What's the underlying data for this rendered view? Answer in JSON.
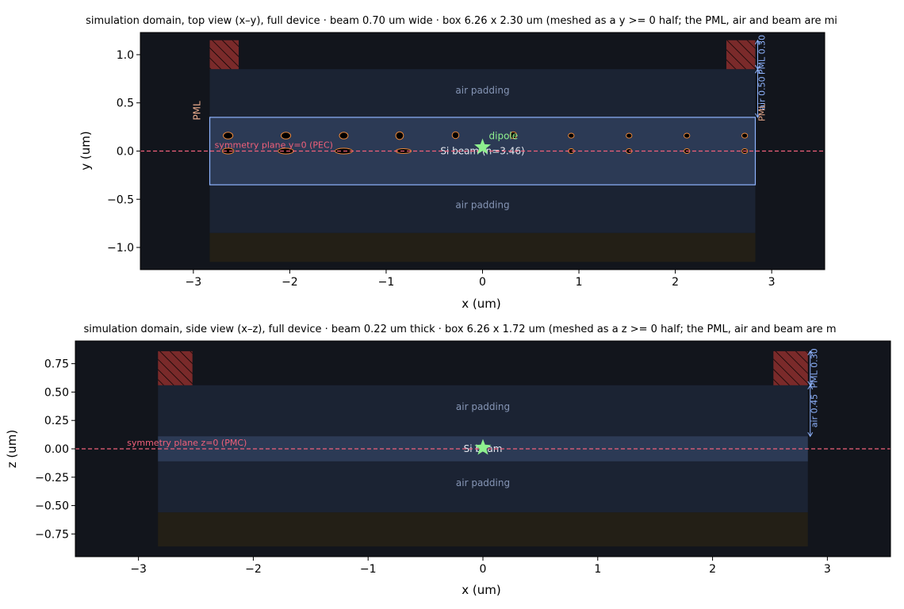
{
  "chart_data": [
    {
      "type": "diagram",
      "title": "simulation domain, top view (x–y), full device · beam 0.70 um wide · box 6.26 x 2.30 um (meshed as a y >= 0 half; the PML, air and beam are mi",
      "xlabel": "x (um)",
      "ylabel": "y (um)",
      "xlim": [
        -3.55,
        3.55
      ],
      "ylim": [
        -1.23,
        1.23
      ],
      "xticks": [
        -3,
        -2,
        -1,
        0,
        1,
        2,
        3
      ],
      "xtick_labels": [
        "−3",
        "−2",
        "−1",
        "0",
        "1",
        "2",
        "3"
      ],
      "yticks": [
        1.0,
        0.5,
        0.0,
        -0.5,
        -1.0
      ],
      "ytick_labels": [
        "1.0",
        "0.5",
        "0.0",
        "−0.5",
        "−1.0"
      ],
      "domain": {
        "xmin": -2.83,
        "xmax": 2.83,
        "ymin": -1.15,
        "ymax": 1.15
      },
      "pml_thickness": 0.3,
      "pml_half": "bottom",
      "beam": {
        "xmin": -2.83,
        "xmax": 2.83,
        "ymin": -0.35,
        "ymax": 0.35,
        "label": "Si beam (n=3.46)",
        "outlined": true
      },
      "air_padding_labels": [
        {
          "x": 0,
          "y": 0.63,
          "text": "air padding"
        },
        {
          "x": 0,
          "y": -0.56,
          "text": "air padding"
        }
      ],
      "symmetry": {
        "y": 0.0,
        "label": "symmetry plane y=0 (PEC)",
        "label_x": -2.78
      },
      "dipole": {
        "x": 0.0,
        "y": 0.04,
        "label": "dipole"
      },
      "side_label": {
        "x": -2.93,
        "y": 0.42,
        "text": "PML"
      },
      "dims": {
        "x": 2.83,
        "air": [
          0.35,
          0.85
        ],
        "air_label": "air 0.50",
        "pml": [
          0.85,
          1.15
        ],
        "pml_label": "PML 0.30",
        "extra_label": "PML"
      },
      "corner_pml": [
        [
          -2.83,
          0.85,
          -2.53,
          1.15
        ],
        [
          2.53,
          0.85,
          2.83,
          1.15
        ]
      ],
      "holes": [
        {
          "x": -2.64,
          "y": 0.16,
          "rx": 0.05,
          "ry": 0.035
        },
        {
          "x": -2.04,
          "y": 0.16,
          "rx": 0.05,
          "ry": 0.035
        },
        {
          "x": -1.44,
          "y": 0.16,
          "rx": 0.045,
          "ry": 0.035
        },
        {
          "x": -0.86,
          "y": 0.16,
          "rx": 0.04,
          "ry": 0.04
        },
        {
          "x": -0.28,
          "y": 0.165,
          "rx": 0.035,
          "ry": 0.035
        },
        {
          "x": 0.32,
          "y": 0.165,
          "rx": 0.035,
          "ry": 0.035
        },
        {
          "x": 0.92,
          "y": 0.16,
          "rx": 0.03,
          "ry": 0.025
        },
        {
          "x": 1.52,
          "y": 0.16,
          "rx": 0.03,
          "ry": 0.025
        },
        {
          "x": 2.12,
          "y": 0.16,
          "rx": 0.03,
          "ry": 0.025
        },
        {
          "x": 2.72,
          "y": 0.16,
          "rx": 0.03,
          "ry": 0.025
        },
        {
          "x": -2.64,
          "y": 0.0,
          "rx": 0.06,
          "ry": 0.03
        },
        {
          "x": -2.04,
          "y": 0.0,
          "rx": 0.08,
          "ry": 0.03
        },
        {
          "x": -1.44,
          "y": 0.0,
          "rx": 0.09,
          "ry": 0.03
        },
        {
          "x": -0.82,
          "y": 0.0,
          "rx": 0.08,
          "ry": 0.025
        },
        {
          "x": 0.92,
          "y": 0.0,
          "rx": 0.03,
          "ry": 0.025
        },
        {
          "x": 1.52,
          "y": 0.0,
          "rx": 0.03,
          "ry": 0.025
        },
        {
          "x": 2.12,
          "y": 0.0,
          "rx": 0.03,
          "ry": 0.025
        },
        {
          "x": 2.72,
          "y": 0.0,
          "rx": 0.03,
          "ry": 0.025
        }
      ]
    },
    {
      "type": "diagram",
      "title": "simulation domain, side view (x–z), full device · beam 0.22 um thick · box 6.26 x 1.72 um (meshed as a z >= 0 half; the PML, air and beam are m",
      "xlabel": "x (um)",
      "ylabel": "z (um)",
      "xlim": [
        -3.55,
        3.55
      ],
      "ylim": [
        -0.95,
        0.95
      ],
      "xticks": [
        -3,
        -2,
        -1,
        0,
        1,
        2,
        3
      ],
      "xtick_labels": [
        "−3",
        "−2",
        "−1",
        "0",
        "1",
        "2",
        "3"
      ],
      "yticks": [
        0.75,
        0.5,
        0.25,
        0.0,
        -0.25,
        -0.5,
        -0.75
      ],
      "ytick_labels": [
        "0.75",
        "0.50",
        "0.25",
        "0.00",
        "−0.25",
        "−0.50",
        "−0.75"
      ],
      "domain": {
        "xmin": -2.83,
        "xmax": 2.83,
        "ymin": -0.86,
        "ymax": 0.86
      },
      "pml_thickness": 0.3,
      "pml_half": "bottom",
      "beam": {
        "xmin": -2.83,
        "xmax": 2.83,
        "ymin": -0.11,
        "ymax": 0.11,
        "label": "Si beam",
        "outlined": false
      },
      "air_padding_labels": [
        {
          "x": 0,
          "y": 0.37,
          "text": "air padding"
        },
        {
          "x": 0,
          "y": -0.3,
          "text": "air padding"
        }
      ],
      "symmetry": {
        "y": 0.0,
        "label": "symmetry plane z=0 (PMC)",
        "label_x": -3.1
      },
      "dipole": {
        "x": 0.0,
        "y": 0.01,
        "label": ""
      },
      "side_label": null,
      "dims": {
        "x": 2.83,
        "air": [
          0.11,
          0.56
        ],
        "air_label": "air 0.45",
        "pml": [
          0.56,
          0.86
        ],
        "pml_label": "PML 0.30",
        "extra_label": ""
      },
      "corner_pml": [
        [
          -2.83,
          0.56,
          -2.53,
          0.86
        ],
        [
          2.53,
          0.56,
          2.83,
          0.86
        ]
      ],
      "holes": []
    }
  ],
  "colors": {
    "background": "#12151c",
    "air": "#1b2333",
    "beam": "#2c3a55",
    "beam_outline": "#8fb4ff",
    "pml_bottom": "#231f16",
    "pml_corner": "#7a2a2a",
    "symmetry": "#f0607a",
    "dipole": "#8ef08e",
    "dim": "#8fb4ff",
    "air_label": "#8595b5",
    "hole_edge": "#e8863a",
    "pml_label": "#e7a98a"
  }
}
